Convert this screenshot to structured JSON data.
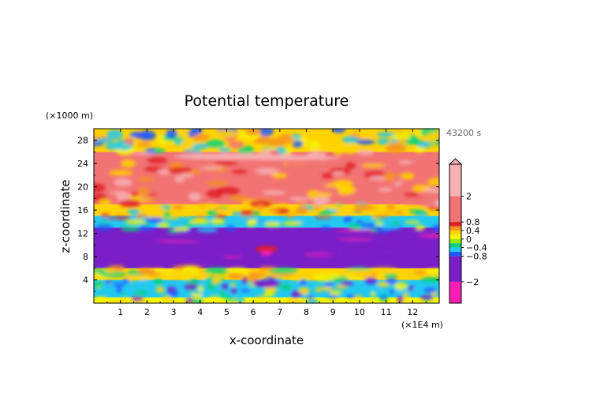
{
  "chart_data": {
    "type": "heatmap",
    "title": "Potential temperature",
    "xlabel": "x-coordinate",
    "ylabel": "z-coordinate",
    "x_unit": "(×1E4 m)",
    "y_unit": "(×1000 m)",
    "time_label": "43200 s",
    "xlim": [
      0,
      13
    ],
    "ylim": [
      0,
      30
    ],
    "x_ticks": [
      "1",
      "2",
      "3",
      "4",
      "5",
      "6",
      "7",
      "8",
      "9",
      "10",
      "11",
      "12"
    ],
    "y_ticks": [
      "4",
      "8",
      "12",
      "16",
      "20",
      "24",
      "28"
    ],
    "colorbar": {
      "range": [
        -3.0,
        3.5
      ],
      "tick_labels": [
        {
          "value": 2,
          "label": "2"
        },
        {
          "value": 0.8,
          "label": "0.8"
        },
        {
          "value": 0.4,
          "label": "0.4"
        },
        {
          "value": 0,
          "label": "0"
        },
        {
          "value": -0.4,
          "label": "−0.4"
        },
        {
          "value": -0.8,
          "label": "−0.8"
        },
        {
          "value": -2,
          "label": "−2"
        }
      ],
      "levels": [
        {
          "lo": 2.0,
          "hi": 3.5,
          "color": "#f7b0b4"
        },
        {
          "lo": 0.8,
          "hi": 2.0,
          "color": "#f27373"
        },
        {
          "lo": 0.6,
          "hi": 0.8,
          "color": "#e01f26"
        },
        {
          "lo": 0.4,
          "hi": 0.6,
          "color": "#f7931e"
        },
        {
          "lo": 0.2,
          "hi": 0.4,
          "color": "#ffd200"
        },
        {
          "lo": 0.0,
          "hi": 0.2,
          "color": "#f5f500"
        },
        {
          "lo": -0.2,
          "hi": 0.0,
          "color": "#9be800"
        },
        {
          "lo": -0.4,
          "hi": -0.2,
          "color": "#00d27a"
        },
        {
          "lo": -0.6,
          "hi": -0.4,
          "color": "#22c8f0"
        },
        {
          "lo": -0.8,
          "hi": -0.6,
          "color": "#1e5aff"
        },
        {
          "lo": -2.0,
          "hi": -0.8,
          "color": "#7a1fc8"
        },
        {
          "lo": -3.0,
          "hi": -2.0,
          "color": "#ff1eb4"
        }
      ]
    },
    "bands": [
      {
        "z": [
          0,
          1
        ],
        "description": "mixed green/yellow"
      },
      {
        "z": [
          1,
          4
        ],
        "description": "blue/cyan mixed"
      },
      {
        "z": [
          4,
          6
        ],
        "description": "yellow/orange"
      },
      {
        "z": [
          6,
          13
        ],
        "description": "purple (~-1)"
      },
      {
        "z": [
          13,
          15
        ],
        "description": "blue/cyan"
      },
      {
        "z": [
          15,
          17
        ],
        "description": "yellow/orange"
      },
      {
        "z": [
          17,
          26
        ],
        "description": "red/pink (~1-2)"
      },
      {
        "z": [
          26,
          30
        ],
        "description": "mixed yellow/orange/blue"
      }
    ]
  }
}
